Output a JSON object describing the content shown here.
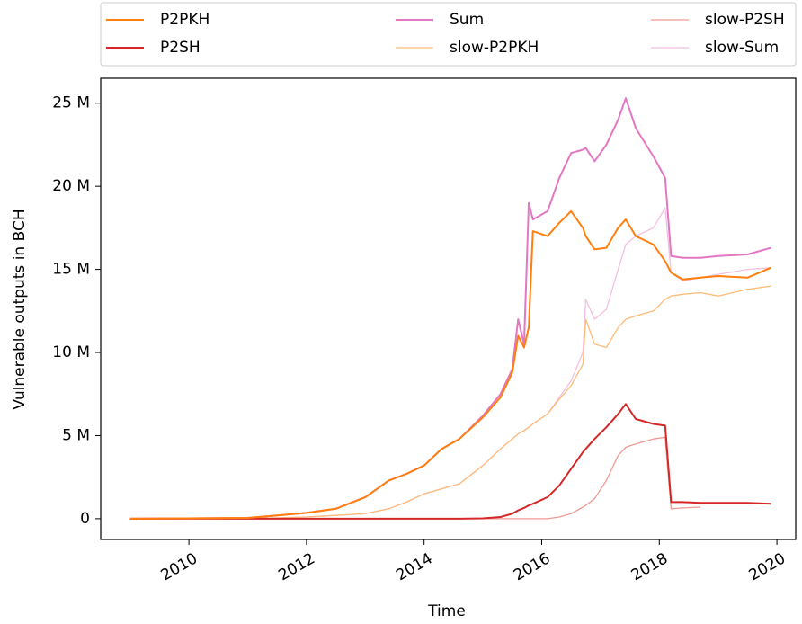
{
  "chart_data": {
    "type": "line",
    "x_label": "Time",
    "y_label": "Vulnerable outputs in BCH",
    "x": [
      2009,
      2010,
      2011,
      2011.5,
      2012,
      2012.5,
      2013,
      2013.4,
      2013.7,
      2014,
      2014.3,
      2014.6,
      2015,
      2015.3,
      2015.5,
      2015.6,
      2015.7,
      2015.78,
      2015.85,
      2016.1,
      2016.3,
      2016.5,
      2016.7,
      2016.75,
      2016.9,
      2017.1,
      2017.3,
      2017.43,
      2017.6,
      2017.9,
      2018.1,
      2018.2,
      2018.4,
      2018.7,
      2019,
      2019.5,
      2019.9
    ],
    "series": [
      {
        "name": "P2PKH",
        "color": "#ff7f0e",
        "width": 2,
        "values": [
          0,
          20000,
          50000,
          200000,
          350000,
          600000,
          1300000,
          2300000,
          2700000,
          3200000,
          4200000,
          4800000,
          6100000,
          7300000,
          8800000,
          11000000,
          10300000,
          11500000,
          17300000,
          17000000,
          17800000,
          18500000,
          17500000,
          17000000,
          16200000,
          16300000,
          17500000,
          18000000,
          17000000,
          16500000,
          15500000,
          14800000,
          14400000,
          14500000,
          14600000,
          14500000,
          15100000
        ]
      },
      {
        "name": "P2SH",
        "color": "#d62728",
        "width": 2,
        "values": [
          0,
          0,
          0,
          0,
          0,
          0,
          0,
          0,
          0,
          0,
          0,
          0,
          20000,
          100000,
          300000,
          500000,
          650000,
          800000,
          900000,
          1300000,
          2000000,
          3000000,
          4000000,
          4200000,
          4800000,
          5500000,
          6300000,
          6900000,
          6000000,
          5700000,
          5600000,
          1000000,
          1000000,
          950000,
          950000,
          950000,
          900000
        ]
      },
      {
        "name": "Sum",
        "color": "#e377c2",
        "width": 2,
        "values": [
          0,
          20000,
          50000,
          200000,
          350000,
          600000,
          1300000,
          2300000,
          2700000,
          3200000,
          4200000,
          4800000,
          6200000,
          7500000,
          9000000,
          12000000,
          10500000,
          19000000,
          18000000,
          18500000,
          20500000,
          22000000,
          22200000,
          22300000,
          21500000,
          22500000,
          24000000,
          25300000,
          23500000,
          21800000,
          20500000,
          15800000,
          15700000,
          15700000,
          15800000,
          15900000,
          16300000
        ]
      },
      {
        "name": "slow-P2PKH",
        "color": "#ffbb78",
        "width": 1.3,
        "values": [
          0,
          0,
          20000,
          50000,
          100000,
          200000,
          300000,
          600000,
          1000000,
          1500000,
          1800000,
          2100000,
          3200000,
          4200000,
          4800000,
          5100000,
          5300000,
          5500000,
          5700000,
          6300000,
          7200000,
          8000000,
          9300000,
          12000000,
          10500000,
          10300000,
          11500000,
          12000000,
          12200000,
          12500000,
          13200000,
          13400000,
          13500000,
          13600000,
          13400000,
          13800000,
          14000000
        ]
      },
      {
        "name": "slow-P2SH",
        "color": "#ee9a94",
        "width": 1.3,
        "values": [
          0,
          0,
          0,
          0,
          0,
          0,
          0,
          0,
          0,
          0,
          0,
          0,
          0,
          0,
          0,
          0,
          0,
          0,
          0,
          0,
          100000,
          300000,
          700000,
          800000,
          1200000,
          2300000,
          3800000,
          4300000,
          4500000,
          4800000,
          4900000,
          600000,
          650000,
          700000,
          null,
          null,
          null
        ]
      },
      {
        "name": "slow-Sum",
        "color": "#f4bfe0",
        "width": 1.3,
        "values": [
          0,
          0,
          20000,
          50000,
          100000,
          200000,
          300000,
          600000,
          1000000,
          1500000,
          1800000,
          2100000,
          3200000,
          4200000,
          4800000,
          5100000,
          5300000,
          5500000,
          5700000,
          6300000,
          7300000,
          8300000,
          10000000,
          13200000,
          12000000,
          12600000,
          15000000,
          16500000,
          17000000,
          17500000,
          18700000,
          14800000,
          14300000,
          14500000,
          14700000,
          15000000,
          15100000
        ]
      }
    ],
    "xlim": [
      2008.5,
      2020.32
    ],
    "xticks": [
      2010,
      2012,
      2014,
      2016,
      2018,
      2020
    ],
    "ylim": [
      -1250000,
      26500000
    ],
    "yticks": [
      0,
      {
        "value": 5000000,
        "label": "5 M"
      },
      {
        "value": 10000000,
        "label": "10 M"
      },
      {
        "value": 15000000,
        "label": "15 M"
      },
      {
        "value": 20000000,
        "label": "20 M"
      },
      {
        "value": 25000000,
        "label": "25 M"
      }
    ],
    "legend": "top"
  }
}
